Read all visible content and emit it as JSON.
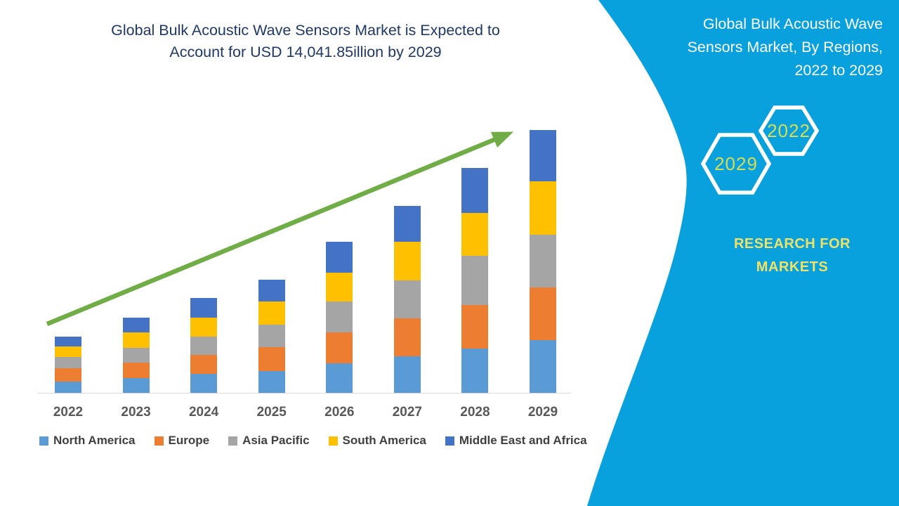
{
  "chart_title": {
    "line1": "Global Bulk Acoustic Wave Sensors Market is Expected to",
    "line2": "Account for USD 14,041.85illion by 2029"
  },
  "panel": {
    "background_color": "#08A0DD",
    "title_lines": {
      "0": "Global Bulk Acoustic Wave",
      "1": "Sensors Market, By Regions,",
      "2": "2022 to 2029"
    },
    "hexagons": {
      "front_year": "2029",
      "back_year": "2022",
      "year_text_color": "#D6DC55",
      "outline_color": "#ffffff"
    },
    "brand": {
      "line1": "RESEARCH FOR",
      "line2": "MARKETS",
      "color": "#F0E266"
    }
  },
  "arrow": {
    "color": "#70AD47"
  },
  "axis": {
    "line_color": "#D9D9D9",
    "label_color": "#595959"
  },
  "chart_data": {
    "type": "bar",
    "subtype": "stacked-column",
    "title": "Global Bulk Acoustic Wave Sensors Market is Expected to Account for USD 14,041.85illion by 2029",
    "xlabel": "",
    "ylabel": "",
    "y_axis_visible": false,
    "grid": false,
    "legend_position": "bottom",
    "units": "USD million (estimated from bar heights; 2029 total labeled 14,041.85)",
    "categories": [
      "2022",
      "2023",
      "2024",
      "2025",
      "2026",
      "2027",
      "2028",
      "2029"
    ],
    "series": [
      {
        "name": "North America",
        "color": "#5B9BD5",
        "values": [
          610,
          790,
          1015,
          1165,
          1575,
          1950,
          2365,
          2815
        ]
      },
      {
        "name": "Europe",
        "color": "#ED7D31",
        "values": [
          700,
          820,
          1015,
          1275,
          1650,
          2030,
          2330,
          2815
        ]
      },
      {
        "name": "Asia Pacific",
        "color": "#A5A5A5",
        "values": [
          600,
          780,
          975,
          1200,
          1650,
          2025,
          2630,
          2815
        ]
      },
      {
        "name": "South America",
        "color": "#FFC000",
        "values": [
          570,
          840,
          1015,
          1240,
          1540,
          2065,
          2290,
          2855
        ]
      },
      {
        "name": "Middle East and Africa",
        "color": "#4472C4",
        "values": [
          520,
          790,
          1050,
          1165,
          1655,
          1920,
          2400,
          2741.85
        ]
      }
    ],
    "totals": [
      3000,
      4020,
      5070,
      6045,
      8070,
      9990,
      12015,
      14041.85
    ],
    "annotations": [
      "upward green trend arrow across bars"
    ]
  }
}
